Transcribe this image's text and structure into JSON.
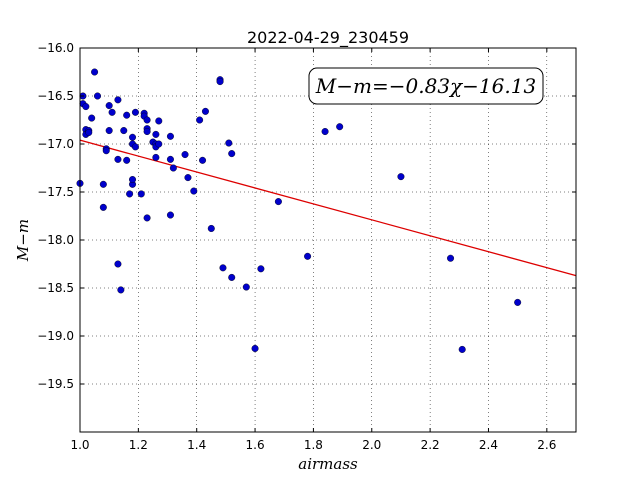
{
  "chart_data": {
    "type": "scatter",
    "title": "2022-04-29_230459",
    "xlabel": "airmass",
    "ylabel": "M−m",
    "xlim": [
      1.0,
      2.7
    ],
    "ylim": [
      -16.0,
      -20.0
    ],
    "y_inverted": true,
    "grid": true,
    "grid_style": "dotted",
    "xticks": [
      "1.0",
      "1.2",
      "1.4",
      "1.6",
      "1.8",
      "2.0",
      "2.2",
      "2.4",
      "2.6"
    ],
    "xtick_values": [
      1.0,
      1.2,
      1.4,
      1.6,
      1.8,
      2.0,
      2.2,
      2.4,
      2.6
    ],
    "yticks": [
      "−16.0",
      "−16.5",
      "−17.0",
      "−17.5",
      "−18.0",
      "−18.5",
      "−19.0",
      "−19.5"
    ],
    "ytick_values": [
      -16.0,
      -16.5,
      -17.0,
      -17.5,
      -18.0,
      -18.5,
      -19.0,
      -19.5
    ],
    "annotation": "M−m=−0.83χ−16.13",
    "colors": {
      "points": "#0000cc",
      "fit": "#dd0000"
    },
    "fit": {
      "slope": -0.83,
      "intercept": -16.13
    },
    "series": [
      {
        "points": [
          [
            1.0,
            -17.41
          ],
          [
            1.01,
            -16.5
          ],
          [
            1.01,
            -16.58
          ],
          [
            1.02,
            -16.61
          ],
          [
            1.02,
            -16.85
          ],
          [
            1.02,
            -16.9
          ],
          [
            1.03,
            -16.86
          ],
          [
            1.03,
            -16.88
          ],
          [
            1.04,
            -16.73
          ],
          [
            1.05,
            -16.25
          ],
          [
            1.06,
            -16.5
          ],
          [
            1.08,
            -17.42
          ],
          [
            1.08,
            -17.66
          ],
          [
            1.09,
            -17.05
          ],
          [
            1.09,
            -17.07
          ],
          [
            1.1,
            -16.6
          ],
          [
            1.1,
            -16.86
          ],
          [
            1.11,
            -16.67
          ],
          [
            1.13,
            -16.54
          ],
          [
            1.13,
            -17.16
          ],
          [
            1.13,
            -18.25
          ],
          [
            1.14,
            -18.52
          ],
          [
            1.15,
            -16.86
          ],
          [
            1.16,
            -16.7
          ],
          [
            1.16,
            -17.17
          ],
          [
            1.17,
            -17.52
          ],
          [
            1.18,
            -16.93
          ],
          [
            1.18,
            -17.0
          ],
          [
            1.18,
            -17.42
          ],
          [
            1.18,
            -17.37
          ],
          [
            1.19,
            -16.67
          ],
          [
            1.19,
            -17.03
          ],
          [
            1.21,
            -17.52
          ],
          [
            1.22,
            -16.68
          ],
          [
            1.22,
            -16.71
          ],
          [
            1.23,
            -16.75
          ],
          [
            1.23,
            -16.84
          ],
          [
            1.23,
            -16.87
          ],
          [
            1.23,
            -17.77
          ],
          [
            1.25,
            -16.98
          ],
          [
            1.26,
            -16.9
          ],
          [
            1.26,
            -17.0
          ],
          [
            1.26,
            -17.03
          ],
          [
            1.26,
            -17.14
          ],
          [
            1.27,
            -16.76
          ],
          [
            1.27,
            -17.0
          ],
          [
            1.31,
            -16.92
          ],
          [
            1.31,
            -17.16
          ],
          [
            1.31,
            -17.74
          ],
          [
            1.32,
            -17.25
          ],
          [
            1.36,
            -17.11
          ],
          [
            1.37,
            -17.35
          ],
          [
            1.39,
            -17.49
          ],
          [
            1.41,
            -16.75
          ],
          [
            1.42,
            -17.17
          ],
          [
            1.43,
            -16.66
          ],
          [
            1.45,
            -17.88
          ],
          [
            1.48,
            -16.33
          ],
          [
            1.48,
            -16.35
          ],
          [
            1.49,
            -18.29
          ],
          [
            1.51,
            -16.99
          ],
          [
            1.52,
            -18.39
          ],
          [
            1.52,
            -17.1
          ],
          [
            1.57,
            -18.49
          ],
          [
            1.6,
            -19.13
          ],
          [
            1.62,
            -18.3
          ],
          [
            1.68,
            -17.6
          ],
          [
            1.78,
            -18.17
          ],
          [
            1.84,
            -16.87
          ],
          [
            1.89,
            -16.82
          ],
          [
            2.1,
            -17.34
          ],
          [
            2.27,
            -18.19
          ],
          [
            2.31,
            -19.14
          ],
          [
            2.5,
            -18.65
          ]
        ]
      }
    ]
  }
}
